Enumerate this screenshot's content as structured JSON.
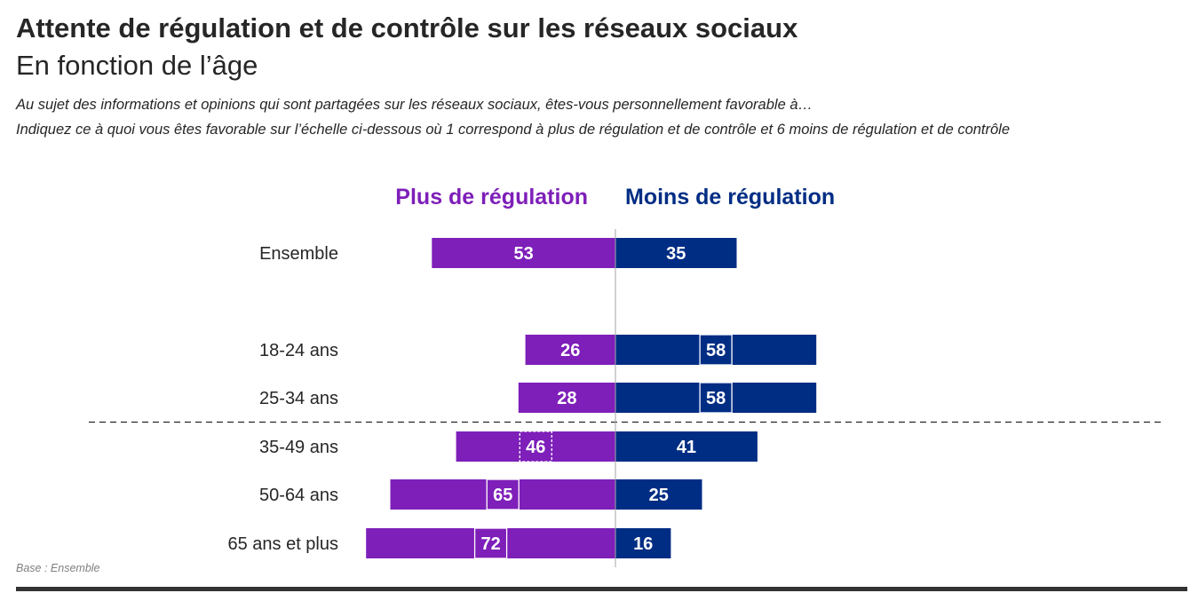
{
  "header": {
    "title": "Attente de régulation et de contrôle sur les réseaux sociaux",
    "subtitle": "En fonction de l’âge",
    "question_line1": "Au sujet des informations et opinions qui sont partagées sur les réseaux sociaux, êtes-vous personnellement favorable à…",
    "question_line2": "Indiquez ce à quoi vous êtes favorable sur l’échelle ci-dessous où 1 correspond à plus de régulation et de contrôle et 6 moins de régulation et de contrôle"
  },
  "footer": {
    "base_note": "Base : Ensemble"
  },
  "colors": {
    "plus": "#7e1fb9",
    "moins": "#002d84",
    "axis": "#a6a6a6",
    "label_text": "#262626"
  },
  "chart_data": {
    "type": "bar",
    "orientation": "horizontal-diverging",
    "title": "Attente de régulation et de contrôle sur les réseaux sociaux",
    "subtitle": "En fonction de l’âge",
    "categories": [
      "Ensemble",
      "18-24 ans",
      "25-34 ans",
      "35-49 ans",
      "50-64 ans",
      "65 ans et plus"
    ],
    "series": [
      {
        "name": "Plus de régulation",
        "side": "left",
        "values": [
          53,
          26,
          28,
          46,
          65,
          72
        ]
      },
      {
        "name": "Moins de régulation",
        "side": "right",
        "values": [
          35,
          58,
          58,
          41,
          25,
          16
        ]
      }
    ],
    "highlighted": [
      {
        "category": "18-24 ans",
        "series": "Moins de régulation",
        "style": "boxed"
      },
      {
        "category": "25-34 ans",
        "series": "Moins de régulation",
        "style": "boxed"
      },
      {
        "category": "35-49 ans",
        "series": "Plus de régulation",
        "style": "dashed-box"
      },
      {
        "category": "50-64 ans",
        "series": "Plus de régulation",
        "style": "boxed"
      },
      {
        "category": "65 ans et plus",
        "series": "Plus de régulation",
        "style": "boxed"
      }
    ],
    "separator_after": "25-34 ans",
    "legend": [
      "Plus de régulation",
      "Moins de régulation"
    ],
    "legend_position": "top-center",
    "xlabel": "",
    "ylabel": "",
    "unit": "%",
    "grid": false
  }
}
